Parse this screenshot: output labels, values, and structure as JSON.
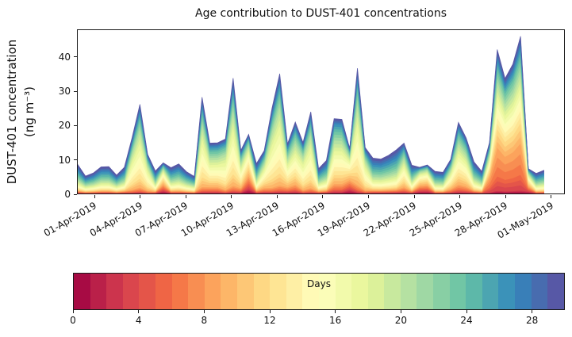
{
  "colors": {
    "background": "#ffffff",
    "axis": "#1a1a1a",
    "text": "#111111"
  },
  "chart_data": {
    "type": "area",
    "subtype": "stacked_area_age_spectrum",
    "title": "Age contribution to DUST-401 concentrations",
    "ylabel_line1": "DUST-401 concentration",
    "ylabel_line2": "(ng m⁻³)",
    "xlabel": "",
    "ylim": [
      0,
      48
    ],
    "y_ticks": [
      0,
      10,
      20,
      30,
      40
    ],
    "xlim_days": [
      -1.15,
      30.9
    ],
    "x_tick_days": [
      0,
      3,
      6,
      9,
      12,
      15,
      18,
      21,
      24,
      27,
      30
    ],
    "x_tick_labels": [
      "01-Apr-2019",
      "04-Apr-2019",
      "07-Apr-2019",
      "10-Apr-2019",
      "13-Apr-2019",
      "16-Apr-2019",
      "19-Apr-2019",
      "22-Apr-2019",
      "25-Apr-2019",
      "28-Apr-2019",
      "01-May-2019"
    ],
    "grid": false,
    "legend": "colorbar-bottom",
    "colorbar": {
      "label": "Days",
      "min": 0,
      "max": 30,
      "ticks": [
        0,
        4,
        8,
        12,
        16,
        20,
        24,
        28
      ],
      "segments": 30,
      "colormap": "Spectral (dark red = young, 0 days; blue-purple = old, 30 days)"
    },
    "age_colors": [
      "#A70B44",
      "#BA2049",
      "#CC344D",
      "#DA464D",
      "#E45549",
      "#EF6545",
      "#F57848",
      "#F88E52",
      "#FCA35C",
      "#FDB668",
      "#FDC776",
      "#FED884",
      "#FEE594",
      "#FEEFA5",
      "#FFFAB6",
      "#FBFDB8",
      "#F2FAAB",
      "#EAF79E",
      "#DCF19A",
      "#C8E99E",
      "#B5E1A2",
      "#9FD8A4",
      "#88CFA4",
      "#71C6A5",
      "#5DB8A9",
      "#4CA5B1",
      "#3B92B9",
      "#397FB8",
      "#486CAF",
      "#5758A6"
    ],
    "bands_days": [
      "0-3",
      "3-6",
      "6-9",
      "9-12",
      "12-15",
      "15-18",
      "18-21",
      "21-24",
      "24-27",
      "27-30"
    ],
    "profiles": {
      "A": [
        0.02,
        0.03,
        0.04,
        0.06,
        0.09,
        0.11,
        0.13,
        0.15,
        0.19,
        0.18
      ],
      "B": [
        0.01,
        0.02,
        0.04,
        0.1,
        0.18,
        0.22,
        0.16,
        0.11,
        0.09,
        0.07
      ],
      "C": [
        0.02,
        0.1,
        0.2,
        0.13,
        0.12,
        0.11,
        0.1,
        0.09,
        0.07,
        0.06
      ],
      "D": [
        0.08,
        0.1,
        0.12,
        0.15,
        0.15,
        0.12,
        0.1,
        0.08,
        0.06,
        0.04
      ],
      "E": [
        0.02,
        0.04,
        0.07,
        0.12,
        0.16,
        0.16,
        0.14,
        0.12,
        0.1,
        0.07
      ]
    },
    "points": {
      "day_start": -1.15,
      "day_step": 0.512,
      "totals": [
        8.5,
        5.1,
        6.0,
        7.8,
        7.9,
        5.4,
        7.7,
        16.5,
        26.2,
        11.5,
        6.6,
        9.0,
        7.6,
        8.7,
        6.4,
        5.0,
        28.3,
        14.8,
        14.9,
        16.0,
        33.9,
        12.7,
        17.4,
        8.8,
        12.6,
        25.0,
        35.2,
        14.6,
        21.0,
        15.0,
        24.0,
        7.3,
        9.7,
        22.0,
        21.8,
        13.3,
        36.8,
        13.5,
        10.4,
        10.1,
        11.2,
        12.8,
        14.8,
        8.3,
        7.7,
        8.4,
        6.5,
        6.2,
        10.0,
        20.9,
        16.3,
        9.3,
        6.5,
        15.0,
        42.3,
        33.8,
        38.0,
        46.2,
        7.3,
        5.9,
        6.8
      ],
      "profile": [
        "A",
        "A",
        "A",
        "A",
        "A",
        "A",
        "A",
        "B",
        "B",
        "B",
        "A",
        "D",
        "A",
        "A",
        "A",
        "A",
        "B",
        "E",
        "E",
        "B",
        "B",
        "E",
        "D",
        "A",
        "E",
        "B",
        "B",
        "E",
        "E",
        "B",
        "B",
        "A",
        "A",
        "E",
        "E",
        "D",
        "B",
        "B",
        "A",
        "A",
        "A",
        "A",
        "E",
        "A",
        "D",
        "D",
        "A",
        "A",
        "E",
        "E",
        "E",
        "A",
        "A",
        "C",
        "C",
        "C",
        "C",
        "C",
        "D",
        "A",
        "A"
      ]
    }
  }
}
